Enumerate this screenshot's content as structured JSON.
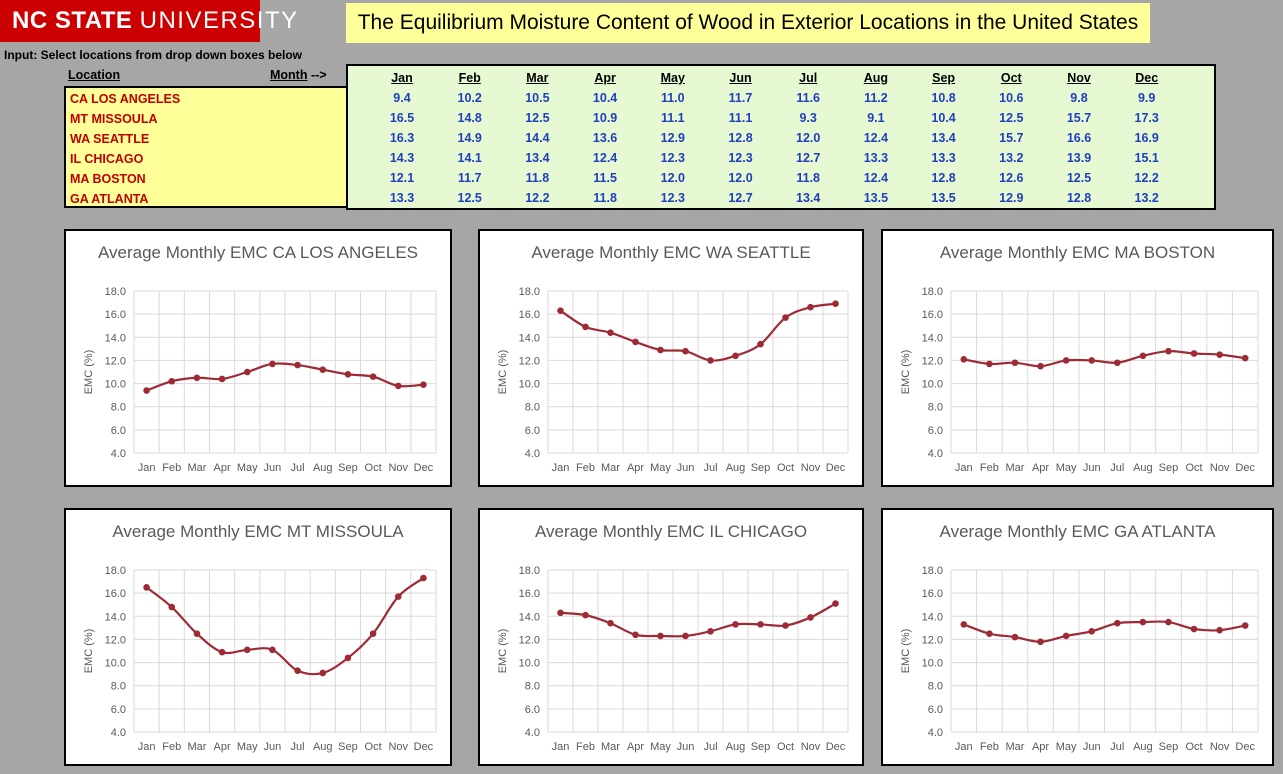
{
  "header": {
    "logo_bold": "NC STATE",
    "logo_rest": "UNIVERSITY",
    "title": "The Equilibrium Moisture Content of Wood in Exterior Locations in the United States"
  },
  "input_note": "Input:  Select locations from drop down boxes below",
  "table": {
    "location_header": "Location",
    "month_header": "Month",
    "month_arrow": " -->",
    "months": [
      "Jan",
      "Feb",
      "Mar",
      "Apr",
      "May",
      "Jun",
      "Jul",
      "Aug",
      "Sep",
      "Oct",
      "Nov",
      "Dec"
    ],
    "rows": [
      {
        "location": "CA LOS ANGELES",
        "values": [
          "9.4",
          "10.2",
          "10.5",
          "10.4",
          "11.0",
          "11.7",
          "11.6",
          "11.2",
          "10.8",
          "10.6",
          "9.8",
          "9.9"
        ]
      },
      {
        "location": "MT MISSOULA",
        "values": [
          "16.5",
          "14.8",
          "12.5",
          "10.9",
          "11.1",
          "11.1",
          "9.3",
          "9.1",
          "10.4",
          "12.5",
          "15.7",
          "17.3"
        ]
      },
      {
        "location": "WA SEATTLE",
        "values": [
          "16.3",
          "14.9",
          "14.4",
          "13.6",
          "12.9",
          "12.8",
          "12.0",
          "12.4",
          "13.4",
          "15.7",
          "16.6",
          "16.9"
        ]
      },
      {
        "location": "IL CHICAGO",
        "values": [
          "14.3",
          "14.1",
          "13.4",
          "12.4",
          "12.3",
          "12.3",
          "12.7",
          "13.3",
          "13.3",
          "13.2",
          "13.9",
          "15.1"
        ]
      },
      {
        "location": "MA BOSTON",
        "values": [
          "12.1",
          "11.7",
          "11.8",
          "11.5",
          "12.0",
          "12.0",
          "11.8",
          "12.4",
          "12.8",
          "12.6",
          "12.5",
          "12.2"
        ]
      },
      {
        "location": "GA ATLANTA",
        "values": [
          "13.3",
          "12.5",
          "12.2",
          "11.8",
          "12.3",
          "12.7",
          "13.4",
          "13.5",
          "13.5",
          "12.9",
          "12.8",
          "13.2"
        ]
      }
    ]
  },
  "colors": {
    "series": "#9e2a36",
    "grid": "#d9d9d9",
    "axis_text": "#595959"
  },
  "chart_data": [
    {
      "type": "line",
      "title": "Average Monthly EMC CA LOS ANGELES",
      "ylabel": "EMC (%)",
      "xlabel": "",
      "ylim": [
        4,
        18
      ],
      "yticks": [
        "4.0",
        "6.0",
        "8.0",
        "10.0",
        "12.0",
        "14.0",
        "16.0",
        "18.0"
      ],
      "categories": [
        "Jan",
        "Feb",
        "Mar",
        "Apr",
        "May",
        "Jun",
        "Jul",
        "Aug",
        "Sep",
        "Oct",
        "Nov",
        "Dec"
      ],
      "values": [
        9.4,
        10.2,
        10.5,
        10.4,
        11.0,
        11.7,
        11.6,
        11.2,
        10.8,
        10.6,
        9.8,
        9.9
      ]
    },
    {
      "type": "line",
      "title": "Average Monthly EMC WA SEATTLE",
      "ylabel": "EMC (%)",
      "xlabel": "",
      "ylim": [
        4,
        18
      ],
      "yticks": [
        "4.0",
        "6.0",
        "8.0",
        "10.0",
        "12.0",
        "14.0",
        "16.0",
        "18.0"
      ],
      "categories": [
        "Jan",
        "Feb",
        "Mar",
        "Apr",
        "May",
        "Jun",
        "Jul",
        "Aug",
        "Sep",
        "Oct",
        "Nov",
        "Dec"
      ],
      "values": [
        16.3,
        14.9,
        14.4,
        13.6,
        12.9,
        12.8,
        12.0,
        12.4,
        13.4,
        15.7,
        16.6,
        16.9
      ]
    },
    {
      "type": "line",
      "title": "Average Monthly EMC MA BOSTON",
      "ylabel": "EMC (%)",
      "xlabel": "",
      "ylim": [
        4,
        18
      ],
      "yticks": [
        "4.0",
        "6.0",
        "8.0",
        "10.0",
        "12.0",
        "14.0",
        "16.0",
        "18.0"
      ],
      "categories": [
        "Jan",
        "Feb",
        "Mar",
        "Apr",
        "May",
        "Jun",
        "Jul",
        "Aug",
        "Sep",
        "Oct",
        "Nov",
        "Dec"
      ],
      "values": [
        12.1,
        11.7,
        11.8,
        11.5,
        12.0,
        12.0,
        11.8,
        12.4,
        12.8,
        12.6,
        12.5,
        12.2
      ]
    },
    {
      "type": "line",
      "title": "Average Monthly EMC MT MISSOULA",
      "ylabel": "EMC (%)",
      "xlabel": "",
      "ylim": [
        4,
        18
      ],
      "yticks": [
        "4.0",
        "6.0",
        "8.0",
        "10.0",
        "12.0",
        "14.0",
        "16.0",
        "18.0"
      ],
      "categories": [
        "Jan",
        "Feb",
        "Mar",
        "Apr",
        "May",
        "Jun",
        "Jul",
        "Aug",
        "Sep",
        "Oct",
        "Nov",
        "Dec"
      ],
      "values": [
        16.5,
        14.8,
        12.5,
        10.9,
        11.1,
        11.1,
        9.3,
        9.1,
        10.4,
        12.5,
        15.7,
        17.3
      ]
    },
    {
      "type": "line",
      "title": "Average Monthly EMC IL CHICAGO",
      "ylabel": "EMC (%)",
      "xlabel": "",
      "ylim": [
        4,
        18
      ],
      "yticks": [
        "4.0",
        "6.0",
        "8.0",
        "10.0",
        "12.0",
        "14.0",
        "16.0",
        "18.0"
      ],
      "categories": [
        "Jan",
        "Feb",
        "Mar",
        "Apr",
        "May",
        "Jun",
        "Jul",
        "Aug",
        "Sep",
        "Oct",
        "Nov",
        "Dec"
      ],
      "values": [
        14.3,
        14.1,
        13.4,
        12.4,
        12.3,
        12.3,
        12.7,
        13.3,
        13.3,
        13.2,
        13.9,
        15.1
      ]
    },
    {
      "type": "line",
      "title": "Average Monthly EMC GA ATLANTA",
      "ylabel": "EMC (%)",
      "xlabel": "",
      "ylim": [
        4,
        18
      ],
      "yticks": [
        "4.0",
        "6.0",
        "8.0",
        "10.0",
        "12.0",
        "14.0",
        "16.0",
        "18.0"
      ],
      "categories": [
        "Jan",
        "Feb",
        "Mar",
        "Apr",
        "May",
        "Jun",
        "Jul",
        "Aug",
        "Sep",
        "Oct",
        "Nov",
        "Dec"
      ],
      "values": [
        13.3,
        12.5,
        12.2,
        11.8,
        12.3,
        12.7,
        13.4,
        13.5,
        13.5,
        12.9,
        12.8,
        13.2
      ]
    }
  ]
}
